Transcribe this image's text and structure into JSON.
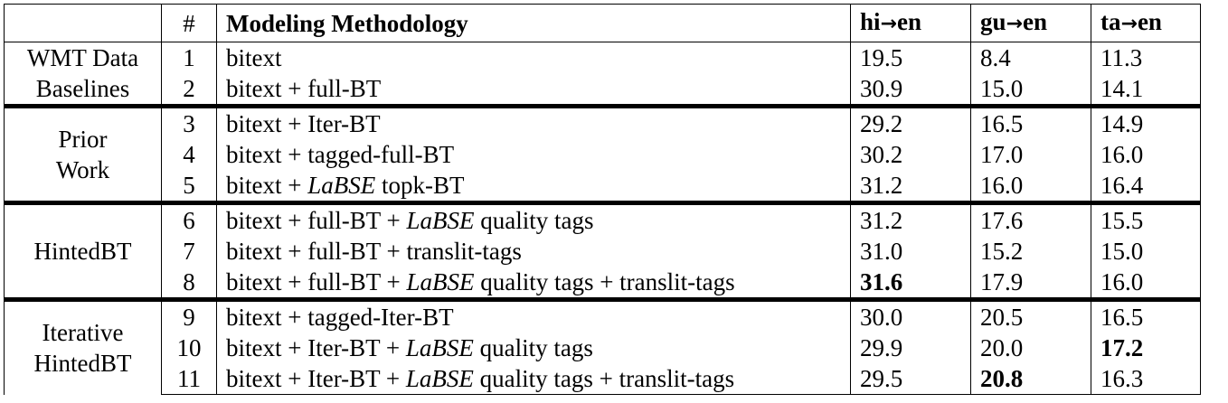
{
  "table": {
    "headers": {
      "group": "",
      "num": "#",
      "method": "Modeling Methodology",
      "hi_src": "hi",
      "gu_src": "gu",
      "ta_src": "ta",
      "arrow": "→",
      "tgt": "en"
    },
    "groups": [
      {
        "label_lines": [
          "WMT Data",
          "Baselines"
        ],
        "rows": [
          {
            "num": "1",
            "method_parts": [
              {
                "text": "bitext",
                "italic": false
              }
            ],
            "hi": "19.5",
            "gu": "8.4",
            "ta": "11.3",
            "bold": ""
          },
          {
            "num": "2",
            "method_parts": [
              {
                "text": "bitext + full-BT",
                "italic": false
              }
            ],
            "hi": "30.9",
            "gu": "15.0",
            "ta": "14.1",
            "bold": ""
          }
        ]
      },
      {
        "label_lines": [
          "Prior",
          "Work"
        ],
        "rows": [
          {
            "num": "3",
            "method_parts": [
              {
                "text": "bitext + Iter-BT",
                "italic": false
              }
            ],
            "hi": "29.2",
            "gu": "16.5",
            "ta": "14.9",
            "bold": ""
          },
          {
            "num": "4",
            "method_parts": [
              {
                "text": "bitext + tagged-full-BT",
                "italic": false
              }
            ],
            "hi": "30.2",
            "gu": "17.0",
            "ta": "16.0",
            "bold": ""
          },
          {
            "num": "5",
            "method_parts": [
              {
                "text": "bitext + ",
                "italic": false
              },
              {
                "text": "LaBSE",
                "italic": true
              },
              {
                "text": " topk-BT",
                "italic": false
              }
            ],
            "hi": "31.2",
            "gu": "16.0",
            "ta": "16.4",
            "bold": ""
          }
        ]
      },
      {
        "label_lines": [
          "HintedBT"
        ],
        "rows": [
          {
            "num": "6",
            "method_parts": [
              {
                "text": "bitext + full-BT + ",
                "italic": false
              },
              {
                "text": "LaBSE",
                "italic": true
              },
              {
                "text": " quality tags",
                "italic": false
              }
            ],
            "hi": "31.2",
            "gu": "17.6",
            "ta": "15.5",
            "bold": ""
          },
          {
            "num": "7",
            "method_parts": [
              {
                "text": "bitext + full-BT + translit-tags",
                "italic": false
              }
            ],
            "hi": "31.0",
            "gu": "15.2",
            "ta": "15.0",
            "bold": ""
          },
          {
            "num": "8",
            "method_parts": [
              {
                "text": "bitext + full-BT + ",
                "italic": false
              },
              {
                "text": "LaBSE",
                "italic": true
              },
              {
                "text": " quality tags + translit-tags",
                "italic": false
              }
            ],
            "hi": "31.6",
            "gu": "17.9",
            "ta": "16.0",
            "bold": "hi"
          }
        ]
      },
      {
        "label_lines": [
          "Iterative",
          "HintedBT"
        ],
        "rows": [
          {
            "num": "9",
            "method_parts": [
              {
                "text": "bitext + tagged-Iter-BT",
                "italic": false
              }
            ],
            "hi": "30.0",
            "gu": "20.5",
            "ta": "16.5",
            "bold": ""
          },
          {
            "num": "10",
            "method_parts": [
              {
                "text": "bitext + Iter-BT + ",
                "italic": false
              },
              {
                "text": "LaBSE",
                "italic": true
              },
              {
                "text": " quality tags",
                "italic": false
              }
            ],
            "hi": "29.9",
            "gu": "20.0",
            "ta": "17.2",
            "bold": "ta"
          },
          {
            "num": "11",
            "method_parts": [
              {
                "text": "bitext + Iter-BT + ",
                "italic": false
              },
              {
                "text": "LaBSE",
                "italic": true
              },
              {
                "text": " quality tags + translit-tags",
                "italic": false
              }
            ],
            "hi": "29.5",
            "gu": "20.8",
            "ta": "16.3",
            "bold": "gu"
          }
        ]
      }
    ]
  }
}
